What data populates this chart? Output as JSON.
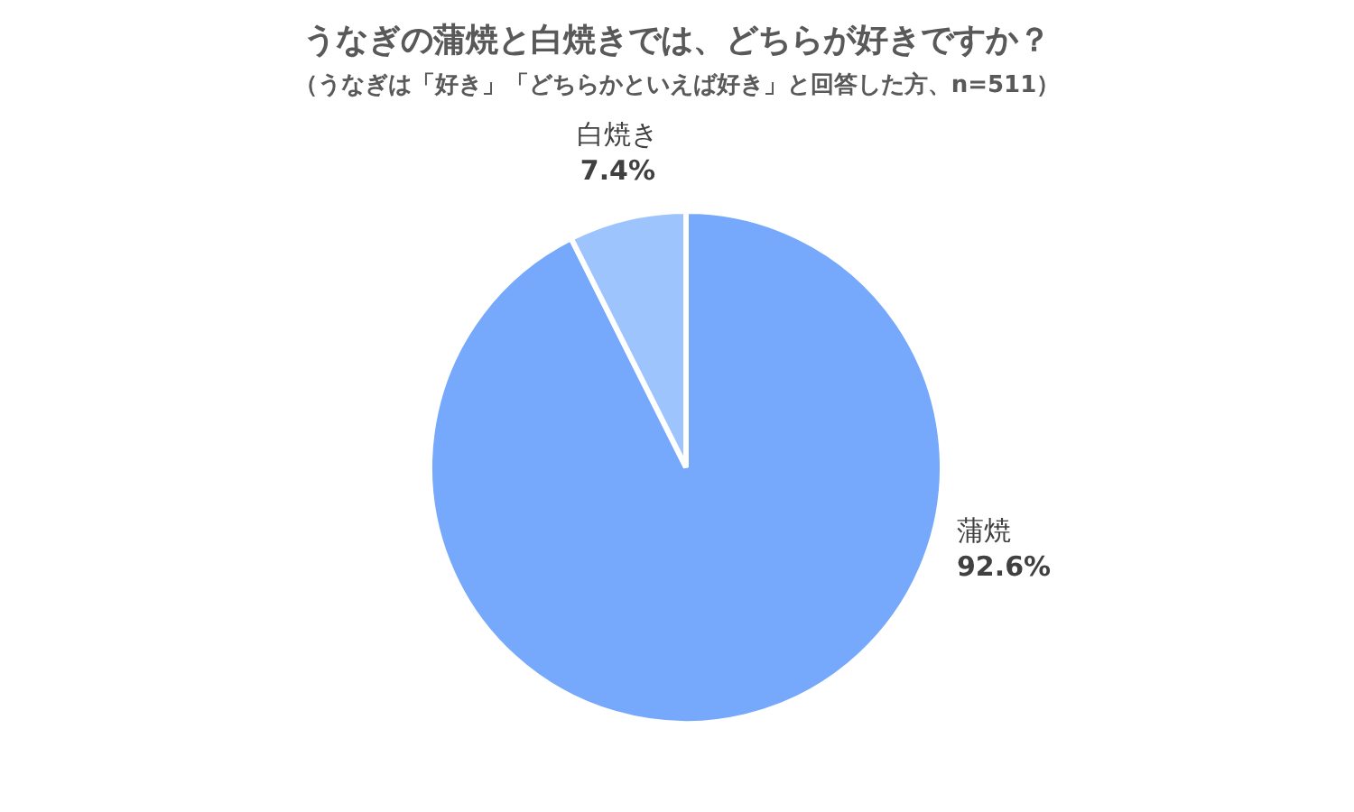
{
  "chart_data": {
    "type": "pie",
    "title": "うなぎの蒲焼と白焼きでは、どちらが好きですか？",
    "subtitle": "（うなぎは「好き」「どちらかといえば好き」と回答した方、n=511）",
    "categories": [
      "蒲焼",
      "白焼き"
    ],
    "values": [
      92.6,
      7.4
    ],
    "colors": [
      "#76a9fc",
      "#9ec4fd"
    ],
    "value_labels": [
      "92.6%",
      "7.4%"
    ],
    "legend": false
  }
}
